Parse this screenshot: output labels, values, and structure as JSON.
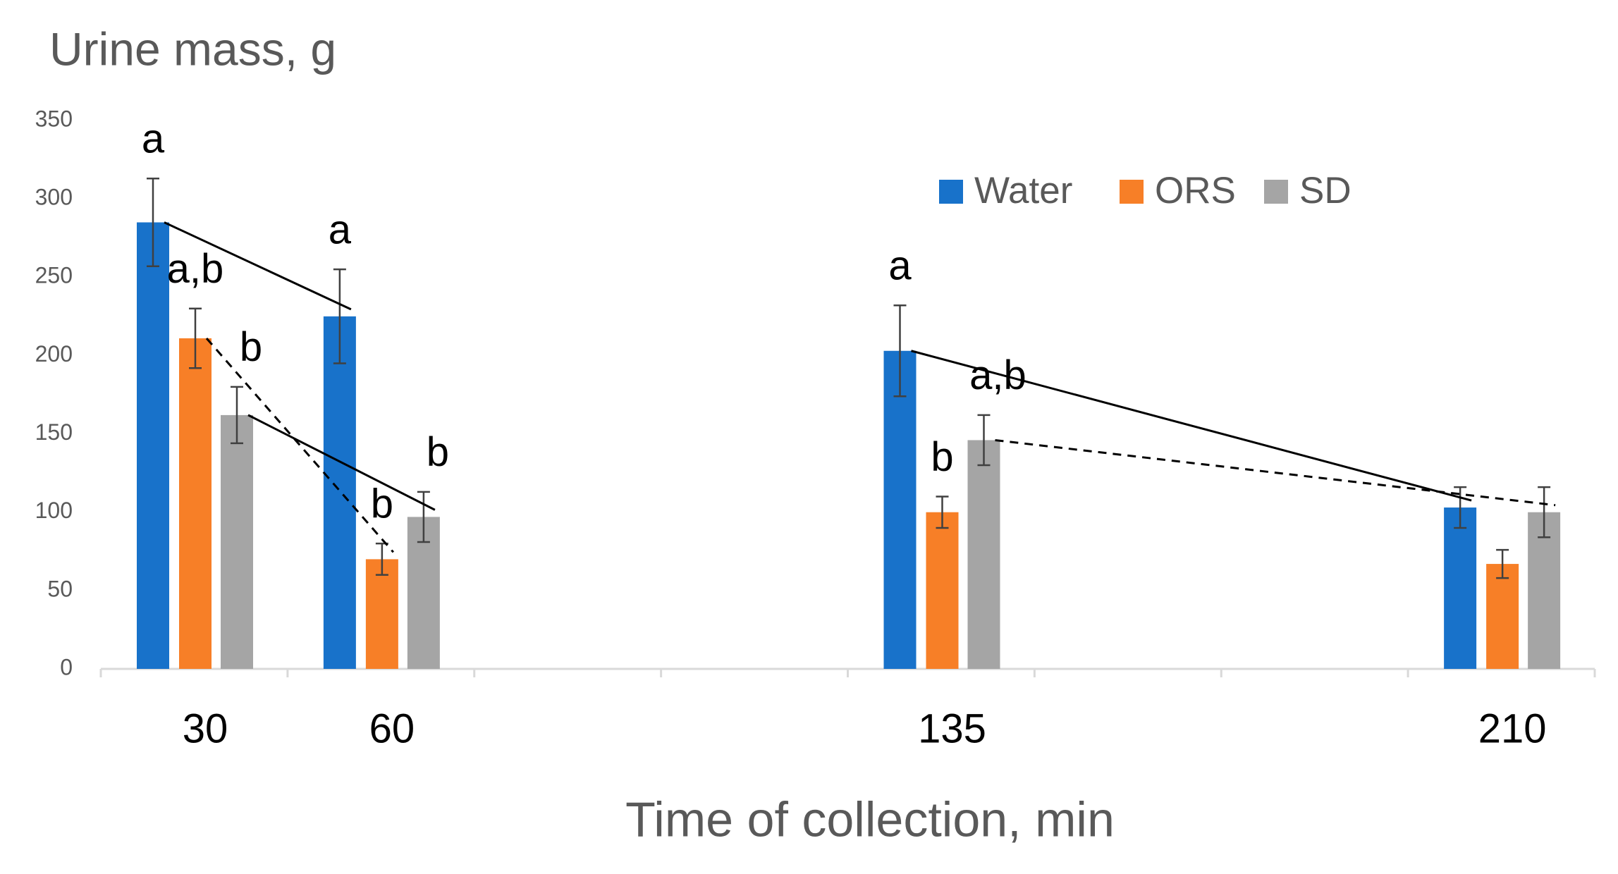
{
  "chart_data": {
    "type": "bar",
    "title": "Urine mass, g",
    "x_label": "Time of collection, min",
    "categories": [
      "30",
      "60",
      null,
      null,
      "135",
      null,
      null,
      "210"
    ],
    "series": [
      {
        "name": "Water",
        "color": "#1872ca",
        "values": [
          285,
          225,
          null,
          null,
          203,
          null,
          null,
          103
        ],
        "errors": [
          28,
          30,
          null,
          null,
          29,
          null,
          null,
          13
        ],
        "letters": [
          "a",
          "a",
          null,
          null,
          "a",
          null,
          null,
          null
        ]
      },
      {
        "name": "ORS",
        "color": "#f77f27",
        "values": [
          211,
          70,
          null,
          null,
          100,
          null,
          null,
          67
        ],
        "errors": [
          19,
          10,
          null,
          null,
          10,
          null,
          null,
          9
        ],
        "letters": [
          "a,b",
          "b",
          null,
          null,
          "b",
          null,
          null,
          null
        ]
      },
      {
        "name": "SD",
        "color": "#a5a5a5",
        "values": [
          162,
          97,
          null,
          null,
          146,
          null,
          null,
          100
        ],
        "errors": [
          18,
          16,
          null,
          null,
          16,
          null,
          null,
          16
        ],
        "letters": [
          "b",
          "b",
          null,
          null,
          "a,b",
          null,
          null,
          null
        ]
      }
    ],
    "ylim": [
      0,
      350
    ],
    "yticks": [
      0,
      50,
      100,
      150,
      200,
      250,
      300,
      350
    ],
    "grid": false,
    "legend": "top-right"
  }
}
